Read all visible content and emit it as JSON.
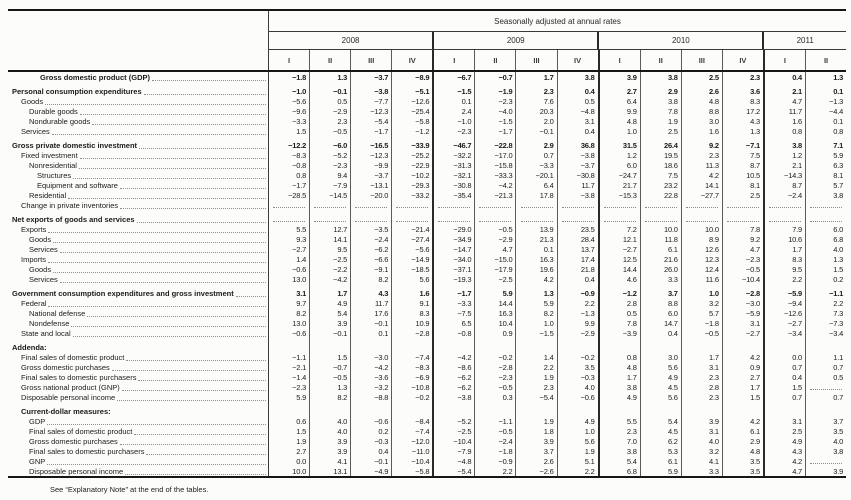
{
  "footer_note": "See “Explanatory Note” at the end of the tables.",
  "table": {
    "header": {
      "spanner": "Seasonally adjusted at annual rates",
      "years": [
        {
          "label": "2008",
          "cols": 4
        },
        {
          "label": "2009",
          "cols": 4
        },
        {
          "label": "2010",
          "cols": 4
        },
        {
          "label": "2011",
          "cols": 2
        }
      ],
      "quarters": [
        "I",
        "II",
        "III",
        "IV",
        "I",
        "II",
        "III",
        "IV",
        "I",
        "II",
        "III",
        "IV",
        "I",
        "II"
      ]
    },
    "rows": [
      {
        "label": "Gross domestic product (GDP)",
        "ind": 4,
        "bold": true,
        "values": [
          "-1.8",
          "1.3",
          "-3.7",
          "-8.9",
          "-6.7",
          "-0.7",
          "1.7",
          "3.8",
          "3.9",
          "3.8",
          "2.5",
          "2.3",
          "0.4",
          "1.3"
        ]
      },
      {
        "label": "Personal consumption expenditures",
        "ind": 0,
        "bold": true,
        "gap": true,
        "values": [
          "-1.0",
          "-0.1",
          "-3.8",
          "-5.1",
          "-1.5",
          "-1.9",
          "2.3",
          "0.4",
          "2.7",
          "2.9",
          "2.6",
          "3.6",
          "2.1",
          "0.1"
        ]
      },
      {
        "label": "Goods",
        "ind": 1,
        "values": [
          "-5.6",
          "0.5",
          "-7.7",
          "-12.6",
          "0.1",
          "-2.3",
          "7.6",
          "0.5",
          "6.4",
          "3.8",
          "4.8",
          "8.3",
          "4.7",
          "-1.3"
        ]
      },
      {
        "label": "Durable goods",
        "ind": 2,
        "values": [
          "-9.6",
          "-2.9",
          "-12.3",
          "-25.4",
          "2.4",
          "-4.0",
          "20.3",
          "-4.8",
          "9.9",
          "7.8",
          "8.8",
          "17.2",
          "11.7",
          "-4.4"
        ]
      },
      {
        "label": "Nondurable goods",
        "ind": 2,
        "values": [
          "-3.3",
          "2.3",
          "-5.4",
          "-5.8",
          "-1.0",
          "-1.5",
          "2.0",
          "3.1",
          "4.8",
          "1.9",
          "3.0",
          "4.3",
          "1.6",
          "0.1"
        ]
      },
      {
        "label": "Services",
        "ind": 1,
        "values": [
          "1.5",
          "-0.5",
          "-1.7",
          "-1.2",
          "-2.3",
          "-1.7",
          "-0.1",
          "0.4",
          "1.0",
          "2.5",
          "1.6",
          "1.3",
          "0.8",
          "0.8"
        ]
      },
      {
        "label": "Gross private domestic investment",
        "ind": 0,
        "bold": true,
        "gap": true,
        "values": [
          "-12.2",
          "-6.0",
          "-16.5",
          "-33.9",
          "-46.7",
          "-22.8",
          "2.9",
          "36.8",
          "31.5",
          "26.4",
          "9.2",
          "-7.1",
          "3.8",
          "7.1"
        ]
      },
      {
        "label": "Fixed investment",
        "ind": 1,
        "values": [
          "-8.3",
          "-5.2",
          "-12.3",
          "-25.2",
          "-32.2",
          "-17.0",
          "0.7",
          "-3.8",
          "1.2",
          "19.5",
          "2.3",
          "7.5",
          "1.2",
          "5.9"
        ]
      },
      {
        "label": "Nonresidential",
        "ind": 2,
        "values": [
          "-0.8",
          "-2.3",
          "-9.9",
          "-22.9",
          "-31.3",
          "-15.8",
          "-3.3",
          "-3.7",
          "6.0",
          "18.6",
          "11.3",
          "8.7",
          "2.1",
          "6.3"
        ]
      },
      {
        "label": "Structures",
        "ind": 3,
        "values": [
          "0.8",
          "9.4",
          "-3.7",
          "-10.2",
          "-32.1",
          "-33.3",
          "-20.1",
          "-30.8",
          "-24.7",
          "7.5",
          "4.2",
          "10.5",
          "-14.3",
          "8.1"
        ]
      },
      {
        "label": "Equipment and software",
        "ind": 3,
        "values": [
          "-1.7",
          "-7.9",
          "-13.1",
          "-29.3",
          "-30.8",
          "-4.2",
          "6.4",
          "11.7",
          "21.7",
          "23.2",
          "14.1",
          "8.1",
          "8.7",
          "5.7"
        ]
      },
      {
        "label": "Residential",
        "ind": 2,
        "values": [
          "-28.5",
          "-14.5",
          "-20.0",
          "-33.2",
          "-35.4",
          "-21.3",
          "17.8",
          "-3.8",
          "-15.3",
          "22.8",
          "-27.7",
          "2.5",
          "-2.4",
          "3.8"
        ]
      },
      {
        "label": "Change in private inventories",
        "ind": 1,
        "values": null,
        "dots": true
      },
      {
        "label": "Net exports of goods and services",
        "ind": 0,
        "bold": true,
        "gap": true,
        "values": null,
        "dots": true
      },
      {
        "label": "Exports",
        "ind": 1,
        "values": [
          "5.5",
          "12.7",
          "-3.5",
          "-21.4",
          "-29.0",
          "-0.5",
          "13.9",
          "23.5",
          "7.2",
          "10.0",
          "10.0",
          "7.8",
          "7.9",
          "6.0"
        ]
      },
      {
        "label": "Goods",
        "ind": 2,
        "values": [
          "9.3",
          "14.1",
          "-2.4",
          "-27.4",
          "-34.9",
          "-2.9",
          "21.3",
          "28.4",
          "12.1",
          "11.8",
          "8.9",
          "9.2",
          "10.6",
          "6.8"
        ]
      },
      {
        "label": "Services",
        "ind": 2,
        "values": [
          "-2.7",
          "9.5",
          "-6.2",
          "-5.6",
          "-14.7",
          "4.7",
          "0.1",
          "13.7",
          "-2.7",
          "6.1",
          "12.6",
          "4.7",
          "1.7",
          "4.0"
        ]
      },
      {
        "label": "Imports",
        "ind": 1,
        "values": [
          "1.4",
          "-2.5",
          "-6.6",
          "-14.9",
          "-34.0",
          "-15.0",
          "16.3",
          "17.4",
          "12.5",
          "21.6",
          "12.3",
          "-2.3",
          "8.3",
          "1.3"
        ]
      },
      {
        "label": "Goods",
        "ind": 2,
        "values": [
          "-0.6",
          "-2.2",
          "-9.1",
          "-18.5",
          "-37.1",
          "-17.9",
          "19.6",
          "21.8",
          "14.4",
          "26.0",
          "12.4",
          "-0.5",
          "9.5",
          "1.5"
        ]
      },
      {
        "label": "Services",
        "ind": 2,
        "values": [
          "13.0",
          "-4.2",
          "8.2",
          "5.6",
          "-19.3",
          "-2.5",
          "4.2",
          "0.4",
          "4.6",
          "3.3",
          "11.6",
          "-10.4",
          "2.2",
          "0.2"
        ]
      },
      {
        "label": "Government consumption expenditures and gross investment",
        "ind": 0,
        "bold": true,
        "gap": true,
        "values": [
          "3.1",
          "1.7",
          "4.3",
          "1.6",
          "-1.7",
          "5.9",
          "1.3",
          "-0.9",
          "-1.2",
          "3.7",
          "1.0",
          "-2.8",
          "-5.9",
          "-1.1"
        ]
      },
      {
        "label": "Federal",
        "ind": 1,
        "values": [
          "9.7",
          "4.9",
          "11.7",
          "9.1",
          "-3.3",
          "14.4",
          "5.9",
          "2.2",
          "2.8",
          "8.8",
          "3.2",
          "-3.0",
          "-9.4",
          "2.2"
        ]
      },
      {
        "label": "National defense",
        "ind": 2,
        "values": [
          "8.2",
          "5.4",
          "17.6",
          "8.3",
          "-7.5",
          "16.3",
          "8.2",
          "-1.3",
          "0.5",
          "6.0",
          "5.7",
          "-5.9",
          "-12.6",
          "7.3"
        ]
      },
      {
        "label": "Nondefense",
        "ind": 2,
        "values": [
          "13.0",
          "3.9",
          "-0.1",
          "10.9",
          "6.5",
          "10.4",
          "1.0",
          "9.9",
          "7.8",
          "14.7",
          "-1.8",
          "3.1",
          "-2.7",
          "-7.3"
        ]
      },
      {
        "label": "State and local",
        "ind": 1,
        "values": [
          "-0.6",
          "-0.1",
          "0.1",
          "-2.8",
          "-0.8",
          "0.9",
          "-1.5",
          "-2.9",
          "-3.9",
          "0.4",
          "-0.5",
          "-2.7",
          "-3.4",
          "-3.4"
        ]
      },
      {
        "label": "Addenda:",
        "ind": 0,
        "bold": true,
        "gap": true,
        "noleader": true,
        "values": null
      },
      {
        "label": "Final sales of domestic product",
        "ind": 1,
        "values": [
          "-1.1",
          "1.5",
          "-3.0",
          "-7.4",
          "-4.2",
          "-0.2",
          "1.4",
          "-0.2",
          "0.8",
          "3.0",
          "1.7",
          "4.2",
          "0.0",
          "1.1"
        ]
      },
      {
        "label": "Gross domestic purchases",
        "ind": 1,
        "values": [
          "-2.1",
          "-0.7",
          "-4.2",
          "-8.3",
          "-8.6",
          "-2.8",
          "2.2",
          "3.5",
          "4.8",
          "5.6",
          "3.1",
          "0.9",
          "0.7",
          "0.7"
        ]
      },
      {
        "label": "Final sales to domestic purchasers",
        "ind": 1,
        "values": [
          "-1.4",
          "-0.5",
          "-3.6",
          "-6.9",
          "-6.2",
          "-2.3",
          "1.9",
          "-0.3",
          "1.7",
          "4.9",
          "2.3",
          "2.7",
          "0.4",
          "0.5"
        ]
      },
      {
        "label": "Gross national product (GNP)",
        "ind": 1,
        "values": [
          "-2.3",
          "1.3",
          "-3.2",
          "-10.8",
          "-6.2",
          "-0.5",
          "2.3",
          "4.0",
          "3.8",
          "4.5",
          "2.8",
          "1.7",
          "1.5",
          null
        ]
      },
      {
        "label": "Disposable personal income",
        "ind": 1,
        "values": [
          "5.9",
          "8.2",
          "-8.8",
          "-0.2",
          "-3.8",
          "0.3",
          "-5.4",
          "-0.6",
          "4.9",
          "5.6",
          "2.3",
          "1.5",
          "0.7",
          "0.7"
        ]
      },
      {
        "label": "Current-dollar measures:",
        "ind": 1,
        "bold": true,
        "gap": true,
        "noleader": true,
        "values": null
      },
      {
        "label": "GDP",
        "ind": 2,
        "values": [
          "0.6",
          "4.0",
          "-0.6",
          "-8.4",
          "-5.2",
          "-1.1",
          "1.9",
          "4.9",
          "5.5",
          "5.4",
          "3.9",
          "4.2",
          "3.1",
          "3.7"
        ]
      },
      {
        "label": "Final sales of domestic product",
        "ind": 2,
        "values": [
          "1.5",
          "4.0",
          "0.2",
          "-7.4",
          "-2.5",
          "-0.5",
          "1.8",
          "1.0",
          "2.3",
          "4.5",
          "3.1",
          "6.1",
          "2.5",
          "3.5"
        ]
      },
      {
        "label": "Gross domestic purchases",
        "ind": 2,
        "values": [
          "1.9",
          "3.9",
          "-0.3",
          "-12.0",
          "-10.4",
          "-2.4",
          "3.9",
          "5.6",
          "7.0",
          "6.2",
          "4.0",
          "2.9",
          "4.9",
          "4.0"
        ]
      },
      {
        "label": "Final sales to domestic purchasers",
        "ind": 2,
        "values": [
          "2.7",
          "3.9",
          "0.4",
          "-11.0",
          "-7.9",
          "-1.8",
          "3.7",
          "1.9",
          "3.8",
          "5.3",
          "3.2",
          "4.8",
          "4.3",
          "3.8"
        ]
      },
      {
        "label": "GNP",
        "ind": 2,
        "values": [
          "0.0",
          "4.1",
          "-0.1",
          "-10.4",
          "-4.8",
          "-0.9",
          "2.6",
          "5.1",
          "5.4",
          "6.1",
          "4.1",
          "3.5",
          "4.2",
          null
        ]
      },
      {
        "label": "Disposable personal income",
        "ind": 2,
        "values": [
          "10.0",
          "13.1",
          "-4.9",
          "-5.8",
          "-5.4",
          "2.2",
          "-2.6",
          "2.2",
          "6.8",
          "5.9",
          "3.3",
          "3.5",
          "4.7",
          "3.9"
        ]
      }
    ]
  }
}
